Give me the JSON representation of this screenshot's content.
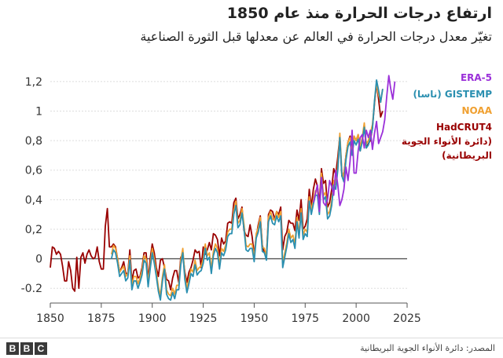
{
  "header": {
    "title": "ارتفاع درجات الحرارة منذ عام 1850",
    "subtitle": "تغيّر معدل درجات الحرارة في العالم عن معدلها قبل الثورة الصناعية"
  },
  "legend": {
    "era5": "ERA-5",
    "gistemp": "GISTEMP (ناسا)",
    "noaa": "NOAA",
    "hadcrut_1": "HadCRUT4",
    "hadcrut_2": "(دائرة الأنواء الجوية",
    "hadcrut_3": "البريطانية)"
  },
  "footer": {
    "source": "المصدر: دائرة الأنواء الجوية البريطانية",
    "logo_letters": [
      "B",
      "B",
      "C"
    ]
  },
  "colors": {
    "era5": "#9b30d9",
    "gistemp": "#2a8fb0",
    "noaa": "#f0a030",
    "hadcrut": "#990000",
    "grid": "#dddddd",
    "zero": "#555555"
  },
  "chart_data": {
    "type": "line",
    "title": "ارتفاع درجات الحرارة منذ عام 1850",
    "subtitle": "تغيّر معدل درجات الحرارة في العالم عن معدلها قبل الثورة الصناعية",
    "xlim": [
      1850,
      2025
    ],
    "ylim": [
      -0.3,
      1.3
    ],
    "x_ticks": [
      1850,
      1875,
      1900,
      1925,
      1950,
      1975,
      2000,
      2025
    ],
    "y_ticks": [
      -0.2,
      0,
      0.2,
      0.4,
      0.6,
      0.8,
      1,
      1.2
    ],
    "y_tick_labels": [
      "-0.2",
      "0",
      "0,2",
      "0,4",
      "0,6",
      "0,8",
      "1",
      "1,2"
    ],
    "grid": true,
    "legend_position": "right",
    "series": [
      {
        "name": "HadCRUT4",
        "key": "hadcrut",
        "start": 1850,
        "values": [
          -0.06,
          0.08,
          0.07,
          0.03,
          0.05,
          0.03,
          -0.05,
          -0.15,
          -0.15,
          -0.02,
          -0.08,
          -0.2,
          -0.22,
          0.01,
          -0.2,
          0.01,
          0.04,
          -0.03,
          0.03,
          0.06,
          0.02,
          0.0,
          0.01,
          0.08,
          -0.02,
          -0.07,
          -0.07,
          0.22,
          0.34,
          0.08,
          0.08,
          0.1,
          0.08,
          0.0,
          -0.09,
          -0.06,
          -0.02,
          -0.1,
          -0.1,
          0.06,
          -0.15,
          -0.08,
          -0.07,
          -0.13,
          -0.12,
          -0.06,
          0.04,
          0.04,
          -0.14,
          0.0,
          0.1,
          0.04,
          -0.06,
          -0.12,
          -0.01,
          0.0,
          -0.06,
          -0.14,
          -0.15,
          -0.21,
          -0.13,
          -0.08,
          -0.08,
          -0.16,
          0.01,
          0.03,
          -0.09,
          -0.16,
          -0.09,
          -0.06,
          -0.01,
          0.06,
          0.04,
          0.05,
          -0.06,
          0.08,
          0.03,
          0.06,
          0.11,
          0.06,
          0.17,
          0.16,
          0.13,
          0.02,
          0.14,
          0.1,
          0.12,
          0.24,
          0.25,
          0.24,
          0.38,
          0.41,
          0.27,
          0.3,
          0.35,
          0.19,
          0.16,
          0.15,
          0.23,
          0.15,
          0.03,
          0.15,
          0.23,
          0.29,
          0.09,
          0.04,
          0.01,
          0.3,
          0.33,
          0.32,
          0.27,
          0.32,
          0.3,
          0.35,
          0.06,
          0.15,
          0.18,
          0.26,
          0.24,
          0.24,
          0.19,
          0.33,
          0.26,
          0.4,
          0.2,
          0.22,
          0.27,
          0.47,
          0.35,
          0.47,
          0.54,
          0.49,
          0.38,
          0.61,
          0.51,
          0.53,
          0.35,
          0.38,
          0.47,
          0.61,
          0.57,
          0.69,
          0.83,
          0.56,
          0.57,
          0.7,
          0.79,
          0.83,
          0.75,
          0.83,
          0.8,
          0.84,
          0.73,
          0.81,
          0.9,
          0.75,
          0.78,
          0.8,
          0.89,
          1.05,
          1.19,
          1.08,
          0.96,
          1.0
        ]
      },
      {
        "name": "NOAA",
        "key": "noaa",
        "start": 1880,
        "values": [
          0.03,
          0.09,
          0.07,
          0.0,
          -0.09,
          -0.07,
          -0.05,
          -0.12,
          -0.1,
          0.02,
          -0.18,
          -0.12,
          -0.12,
          -0.17,
          -0.13,
          -0.08,
          0.02,
          0.0,
          -0.16,
          -0.04,
          0.07,
          0.0,
          -0.09,
          -0.19,
          -0.25,
          -0.12,
          -0.04,
          -0.21,
          -0.24,
          -0.25,
          -0.2,
          -0.24,
          -0.18,
          -0.18,
          -0.01,
          0.07,
          -0.11,
          -0.2,
          -0.14,
          -0.07,
          -0.09,
          -0.01,
          -0.08,
          -0.06,
          -0.05,
          0.0,
          0.1,
          0.02,
          0.04,
          -0.07,
          0.05,
          0.1,
          0.07,
          -0.04,
          0.07,
          0.05,
          0.09,
          0.18,
          0.2,
          0.2,
          0.33,
          0.39,
          0.24,
          0.26,
          0.34,
          0.23,
          0.09,
          0.08,
          0.1,
          0.1,
          0.01,
          0.17,
          0.21,
          0.28,
          0.08,
          0.07,
          0.02,
          0.28,
          0.32,
          0.27,
          0.26,
          0.32,
          0.28,
          0.32,
          -0.03,
          0.04,
          0.11,
          0.2,
          0.14,
          0.16,
          0.1,
          0.28,
          0.17,
          0.34,
          0.16,
          0.2,
          0.18,
          0.42,
          0.33,
          0.4,
          0.46,
          0.46,
          0.33,
          0.58,
          0.43,
          0.45,
          0.3,
          0.32,
          0.39,
          0.53,
          0.5,
          0.63,
          0.85,
          0.59,
          0.55,
          0.7,
          0.79,
          0.82,
          0.73,
          0.83,
          0.8,
          0.84,
          0.76,
          0.82,
          0.92,
          0.78,
          0.8,
          0.85,
          0.91,
          1.06,
          1.19,
          1.11,
          1.06,
          1.15
        ]
      },
      {
        "name": "GISTEMP",
        "key": "gistemp",
        "start": 1880,
        "values": [
          0.0,
          0.06,
          0.04,
          -0.03,
          -0.12,
          -0.1,
          -0.08,
          -0.15,
          -0.13,
          -0.01,
          -0.21,
          -0.15,
          -0.15,
          -0.2,
          -0.16,
          -0.11,
          -0.01,
          -0.03,
          -0.19,
          -0.07,
          0.04,
          -0.03,
          -0.12,
          -0.22,
          -0.28,
          -0.15,
          -0.07,
          -0.24,
          -0.27,
          -0.28,
          -0.23,
          -0.27,
          -0.21,
          -0.21,
          -0.04,
          0.04,
          -0.14,
          -0.23,
          -0.17,
          -0.1,
          -0.12,
          -0.04,
          -0.11,
          -0.09,
          -0.08,
          -0.03,
          0.07,
          -0.01,
          0.01,
          -0.1,
          0.02,
          0.07,
          0.04,
          -0.07,
          0.04,
          0.02,
          0.06,
          0.15,
          0.17,
          0.17,
          0.3,
          0.36,
          0.21,
          0.23,
          0.31,
          0.2,
          0.06,
          0.05,
          0.07,
          0.07,
          -0.02,
          0.14,
          0.18,
          0.25,
          0.05,
          0.04,
          -0.01,
          0.25,
          0.29,
          0.24,
          0.23,
          0.29,
          0.25,
          0.29,
          -0.06,
          0.01,
          0.08,
          0.17,
          0.11,
          0.13,
          0.07,
          0.25,
          0.14,
          0.31,
          0.13,
          0.17,
          0.15,
          0.39,
          0.3,
          0.37,
          0.43,
          0.43,
          0.3,
          0.55,
          0.4,
          0.42,
          0.27,
          0.29,
          0.36,
          0.5,
          0.47,
          0.6,
          0.82,
          0.56,
          0.52,
          0.67,
          0.76,
          0.79,
          0.7,
          0.8,
          0.77,
          0.81,
          0.73,
          0.79,
          0.89,
          0.75,
          0.77,
          0.82,
          0.88,
          1.07,
          1.21,
          1.14,
          1.06,
          1.15
        ]
      },
      {
        "name": "ERA-5",
        "key": "era5",
        "start": 1979,
        "values": [
          0.38,
          0.44,
          0.5,
          0.32,
          0.55,
          0.38,
          0.36,
          0.4,
          0.53,
          0.49,
          0.43,
          0.6,
          0.5,
          0.36,
          0.4,
          0.47,
          0.62,
          0.53,
          0.66,
          0.87,
          0.58,
          0.58,
          0.73,
          0.82,
          0.84,
          0.75,
          0.87,
          0.82,
          0.87,
          0.74,
          0.85,
          0.93,
          0.78,
          0.82,
          0.86,
          0.94,
          1.1,
          1.24,
          1.15,
          1.08,
          1.2
        ]
      }
    ]
  }
}
